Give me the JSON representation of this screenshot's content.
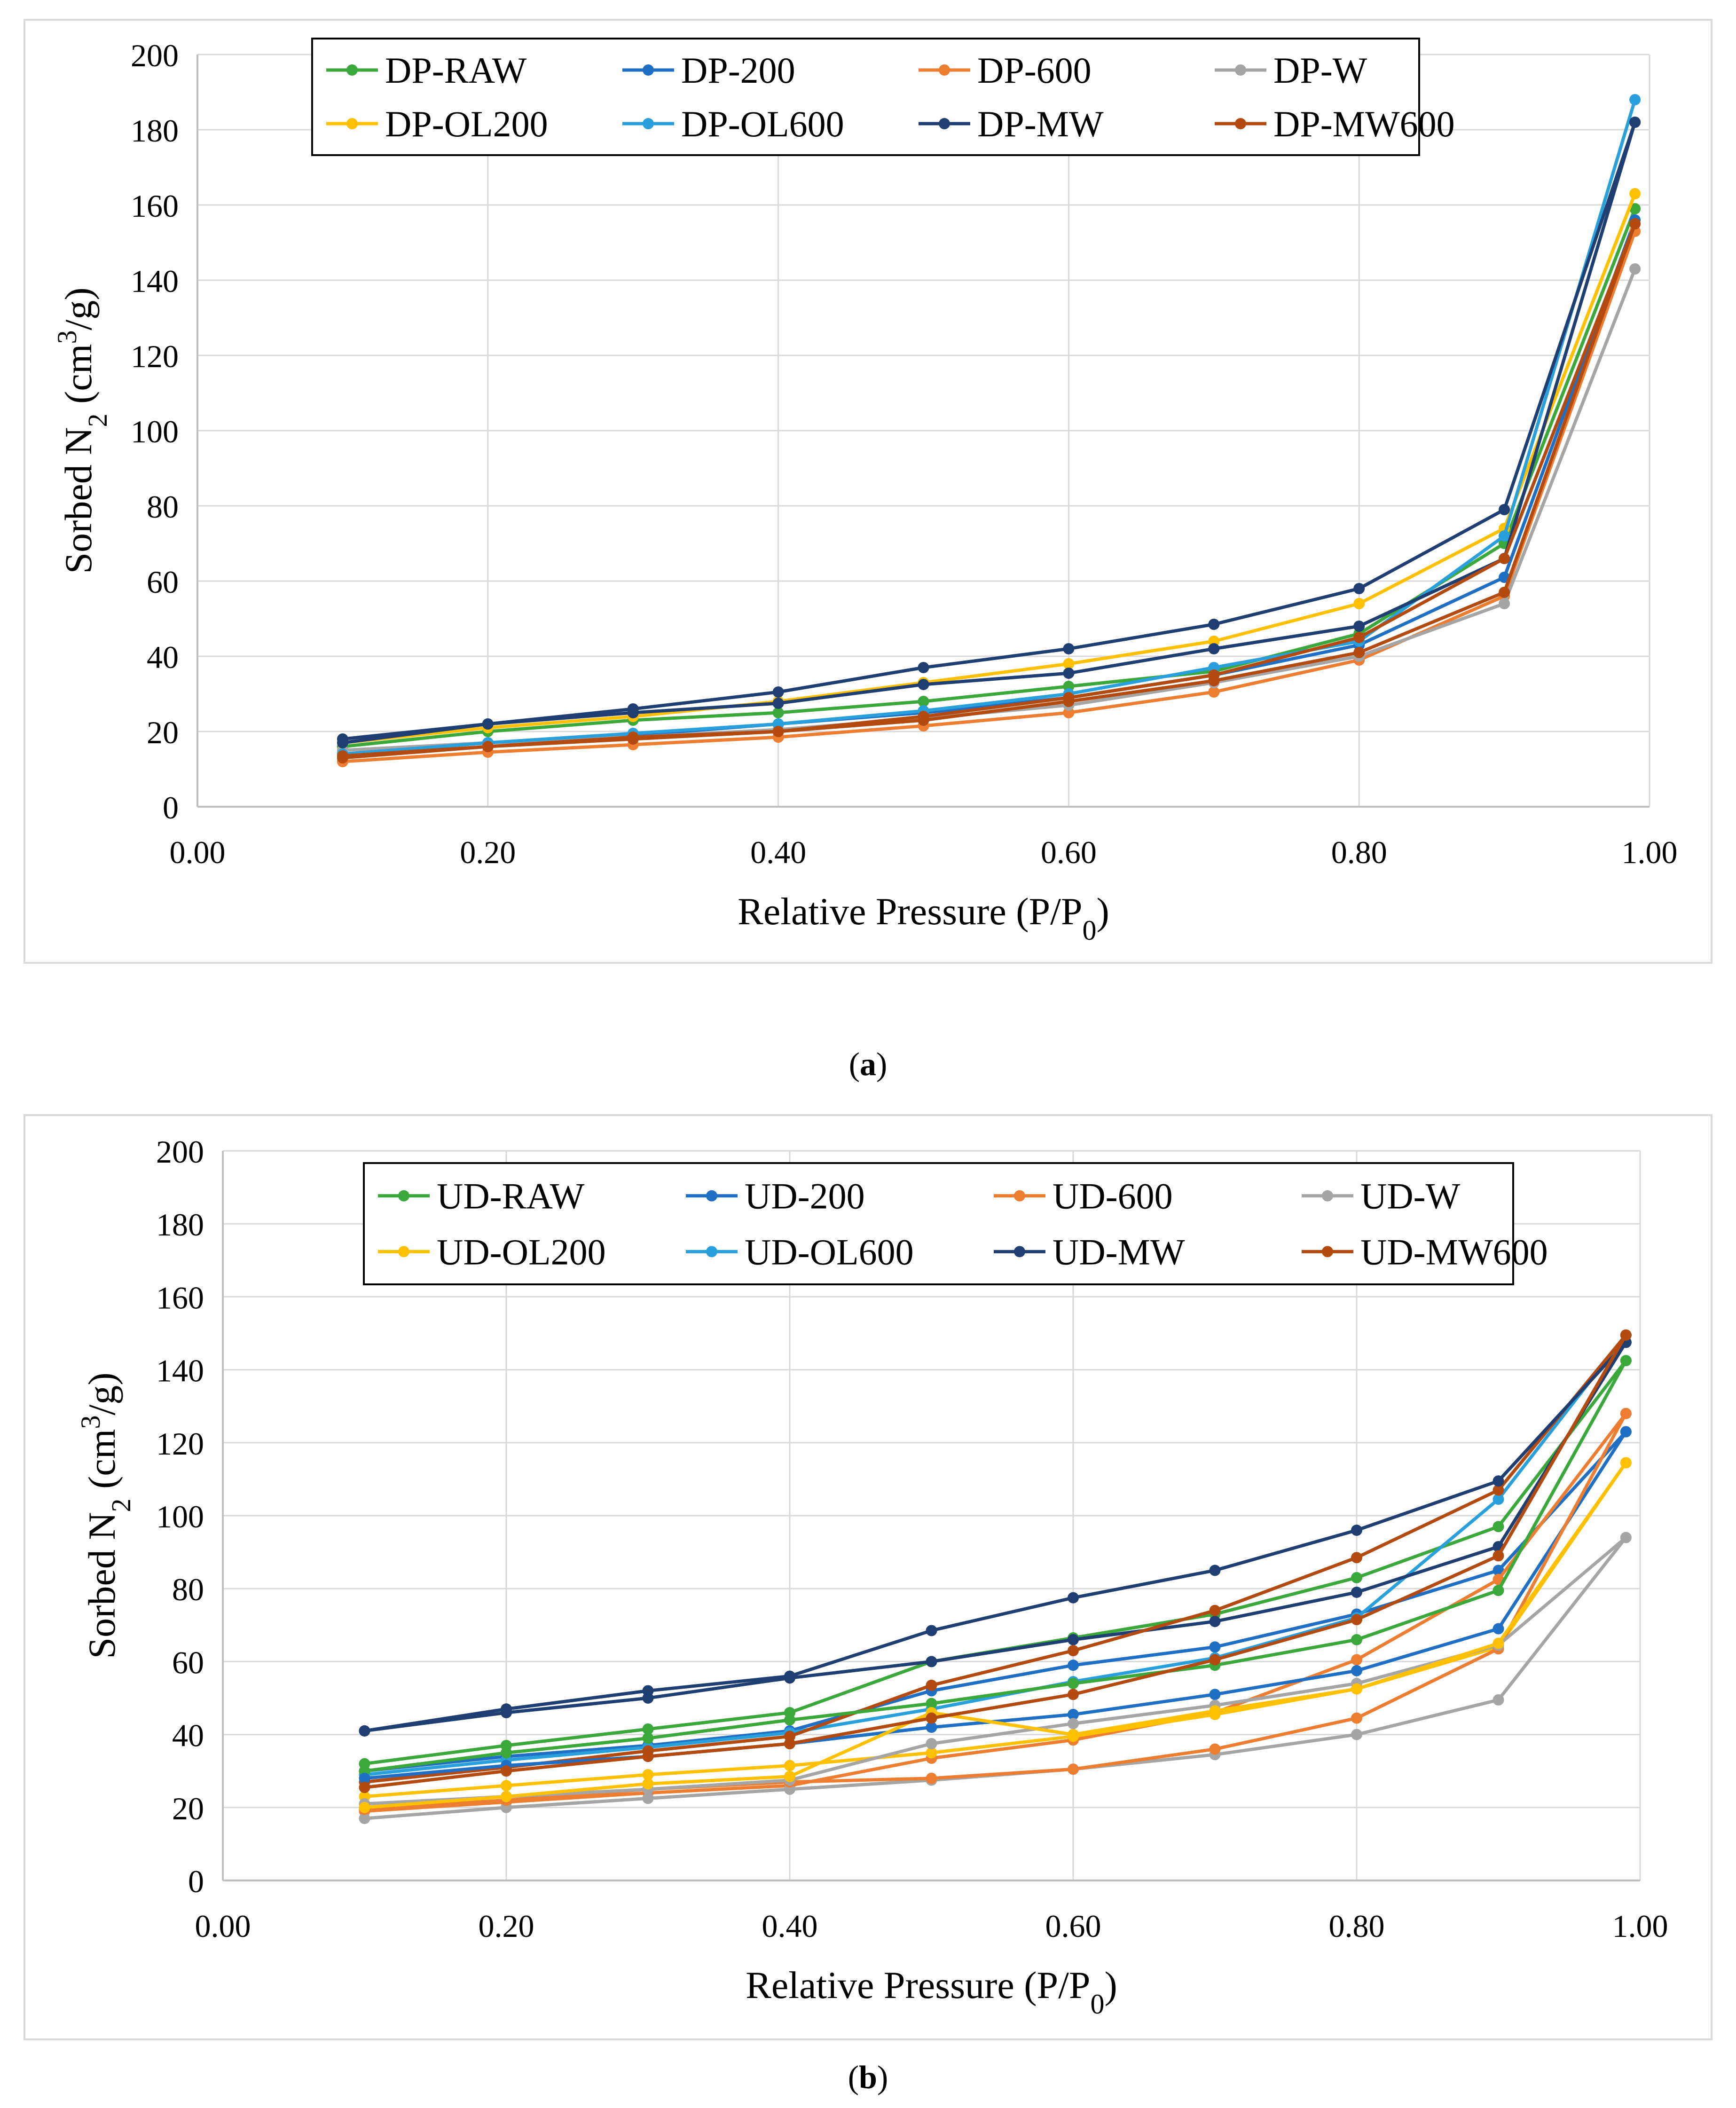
{
  "colors": {
    "RAW": "#3aa83a",
    "200": "#1f6fc5",
    "600": "#ed7d31",
    "W": "#a5a5a5",
    "OL200": "#ffc000",
    "OL600": "#29a0dc",
    "MW": "#1f3f73",
    "MW600": "#b34a0f"
  },
  "captions": {
    "a": "a",
    "b": "b"
  },
  "chart_data": [
    {
      "type": "line",
      "id": "a",
      "xlabel": "Relative Pressure (P/P0)",
      "xlabel_main": "Relative Pressure (P/P",
      "xlabel_sub": "0",
      "xlabel_end": ")",
      "ylabel": "Sorbed N2 (cm3/g)",
      "ylabel_a": "Sorbed N",
      "ylabel_sub": "2",
      "ylabel_b": " (cm",
      "ylabel_sup": "3",
      "ylabel_c": "/g)",
      "xlim": [
        0,
        1
      ],
      "ylim": [
        0,
        200
      ],
      "xticks": [
        "0.00",
        "0.20",
        "0.40",
        "0.60",
        "0.80",
        "1.00"
      ],
      "yticks": [
        "0",
        "20",
        "40",
        "60",
        "80",
        "100",
        "120",
        "140",
        "160",
        "180",
        "200"
      ],
      "x": [
        0.1,
        0.2,
        0.3,
        0.4,
        0.5,
        0.6,
        0.7,
        0.8,
        0.9,
        0.99
      ],
      "legend_cols": 4,
      "series": [
        {
          "name": "DP-RAW",
          "color_key": "RAW",
          "values": [
            16,
            20,
            23,
            25,
            28,
            32,
            36,
            46,
            70,
            159
          ]
        },
        {
          "name": "DP-200",
          "color_key": "200",
          "values": [
            14,
            17,
            19,
            22,
            25,
            29,
            35,
            43,
            61,
            156
          ]
        },
        {
          "name": "DP-600",
          "color_key": "600",
          "values": [
            12,
            14.5,
            16.5,
            18.5,
            21.5,
            25,
            30.5,
            39,
            56,
            153
          ]
        },
        {
          "name": "DP-W",
          "color_key": "W",
          "values": [
            15,
            17,
            18.5,
            20.5,
            23.5,
            27,
            33,
            40,
            54,
            143
          ]
        },
        {
          "name": "DP-OL200",
          "color_key": "OL200",
          "values": [
            17,
            21,
            24,
            28,
            33,
            38,
            44,
            54,
            74,
            163
          ]
        },
        {
          "name": "DP-OL600",
          "color_key": "OL600",
          "values": [
            14,
            17,
            19.5,
            22,
            25.5,
            30,
            37,
            44,
            72,
            188
          ]
        },
        {
          "name": "DP-MW",
          "color_key": "MW",
          "values": [
            18,
            22,
            26,
            30.5,
            37,
            42,
            48.5,
            58,
            79,
            182
          ]
        },
        {
          "name": "DP-MW600",
          "color_key": "MW600",
          "values": [
            13,
            16,
            18,
            20,
            23,
            28,
            33.5,
            41,
            57,
            155
          ]
        },
        {
          "name": "",
          "color_key": "MW",
          "values": [
            17,
            22,
            25,
            27.5,
            32.5,
            35.5,
            42,
            48,
            66,
            182
          ]
        },
        {
          "name": "",
          "color_key": "MW600",
          "values": [
            13.5,
            16,
            18.5,
            20,
            24,
            29,
            35,
            45,
            66,
            155
          ]
        }
      ]
    },
    {
      "type": "line",
      "id": "b",
      "xlabel": "Relative Pressure (P/P0)",
      "xlabel_main": "Relative Pressure (P/P",
      "xlabel_sub": "0",
      "xlabel_end": ")",
      "ylabel": "Sorbed N2 (cm3/g)",
      "ylabel_a": "Sorbed N",
      "ylabel_sub": "2",
      "ylabel_b": " (cm",
      "ylabel_sup": "3",
      "ylabel_c": "/g)",
      "xlim": [
        0,
        1
      ],
      "ylim": [
        0,
        200
      ],
      "xticks": [
        "0.00",
        "0.20",
        "0.40",
        "0.60",
        "0.80",
        "1.00"
      ],
      "yticks": [
        "0",
        "20",
        "40",
        "60",
        "80",
        "100",
        "120",
        "140",
        "160",
        "180",
        "200"
      ],
      "x": [
        0.1,
        0.2,
        0.3,
        0.4,
        0.5,
        0.6,
        0.7,
        0.8,
        0.9,
        0.99
      ],
      "legend_cols": 4,
      "series": [
        {
          "name": "UD-RAW",
          "color_key": "RAW",
          "values": [
            32,
            37,
            41.5,
            46,
            60,
            66.5,
            73,
            83,
            97,
            142.5
          ]
        },
        {
          "name": "UD-200",
          "color_key": "200",
          "values": [
            30,
            34,
            37,
            41,
            52,
            59,
            64,
            73,
            85,
            123
          ]
        },
        {
          "name": "UD-600",
          "color_key": "600",
          "values": [
            19,
            21.5,
            24,
            26,
            33.5,
            38.5,
            46,
            60.5,
            82.5,
            128
          ]
        },
        {
          "name": "UD-W",
          "color_key": "W",
          "values": [
            17,
            20,
            22.5,
            25,
            27.5,
            30.5,
            34.5,
            40,
            49.5,
            94
          ]
        },
        {
          "name": "UD-OL200",
          "color_key": "OL200",
          "values": [
            23,
            26,
            29,
            31.5,
            35,
            39.5,
            45.5,
            52.5,
            64,
            114.5
          ]
        },
        {
          "name": "UD-OL600",
          "color_key": "OL600",
          "values": [
            29,
            33,
            36.5,
            40.5,
            47,
            54.5,
            61,
            72,
            104.5,
            149.5
          ]
        },
        {
          "name": "UD-MW",
          "color_key": "MW",
          "values": [
            41,
            46,
            50,
            55.5,
            60,
            66,
            71,
            79,
            91.5,
            147.5
          ]
        },
        {
          "name": "UD-MW600",
          "color_key": "MW600",
          "values": [
            27,
            31,
            35.5,
            39.5,
            53.5,
            63,
            74,
            88.5,
            107,
            149.5
          ]
        },
        {
          "name": "",
          "color_key": "RAW",
          "values": [
            30,
            35,
            39,
            44,
            48.5,
            54,
            59,
            66,
            79.5,
            142.5
          ]
        },
        {
          "name": "",
          "color_key": "200",
          "values": [
            28,
            31.5,
            34,
            37.5,
            42,
            45.5,
            51,
            57.5,
            69,
            123
          ]
        },
        {
          "name": "",
          "color_key": "600",
          "values": [
            19.5,
            22,
            25,
            27,
            28,
            30.5,
            36,
            44.5,
            63.5,
            128
          ]
        },
        {
          "name": "",
          "color_key": "W",
          "values": [
            21,
            23,
            25,
            27.5,
            37.5,
            43,
            48,
            54,
            64.5,
            94
          ]
        },
        {
          "name": "",
          "color_key": "OL200",
          "values": [
            20,
            23,
            26.5,
            28.5,
            46,
            40,
            46.5,
            52.5,
            65,
            114.5
          ]
        },
        {
          "name": "",
          "color_key": "MW",
          "values": [
            41,
            47,
            52,
            56,
            68.5,
            77.5,
            85,
            96,
            109.5,
            147.5
          ]
        },
        {
          "name": "",
          "color_key": "MW600",
          "values": [
            25.5,
            30,
            34,
            37.5,
            44.5,
            51,
            60.5,
            71.5,
            89,
            149.5
          ]
        }
      ]
    }
  ]
}
